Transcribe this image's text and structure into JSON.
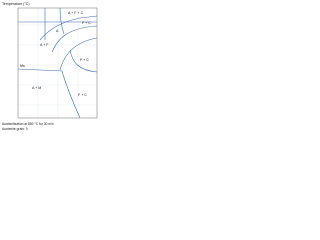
{
  "diagram": {
    "y_axis_label": "Temperature (°C)",
    "regions": [
      {
        "label": "A + F + C"
      },
      {
        "label": "F + C"
      },
      {
        "label": "A"
      },
      {
        "label": "A + F"
      },
      {
        "label": "Ms"
      },
      {
        "label": "A + M"
      },
      {
        "label": "F + C"
      },
      {
        "label": "F + C"
      }
    ],
    "footer": [
      "Austenitisation at 880 °C for 30 min",
      "Austenite grain: 9"
    ]
  }
}
